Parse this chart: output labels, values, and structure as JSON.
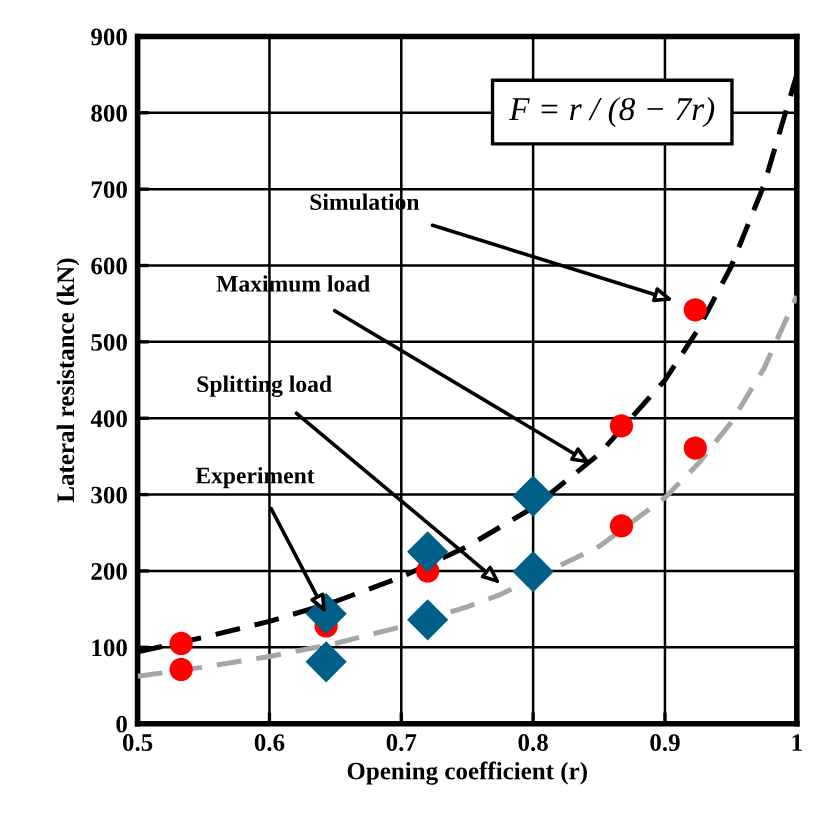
{
  "chart_data": {
    "type": "line",
    "xlabel": "Opening coefficient (r)",
    "ylabel": "Lateral resistance (kN)",
    "xlim": [
      0.5,
      1
    ],
    "ylim": [
      0,
      900
    ],
    "xticks": [
      0.5,
      0.6,
      0.7,
      0.8,
      0.9,
      {
        "value": 1,
        "label": "1"
      }
    ],
    "yticks": [
      0,
      100,
      200,
      300,
      400,
      500,
      600,
      700,
      800,
      900
    ],
    "grid": true,
    "legend": false,
    "series": [
      {
        "line_style": "dashed",
        "marker": "none",
        "color": "#000000",
        "x": [
          0.5,
          0.55,
          0.6,
          0.65,
          0.7,
          0.75,
          0.8,
          0.85,
          0.9,
          0.925,
          0.95,
          0.975,
          1.0
        ],
        "values": [
          94,
          113,
          134,
          160,
          192,
          232,
          283,
          353,
          450,
          516,
          598,
          705,
          850
        ]
      },
      {
        "line_style": "dashed",
        "marker": "none",
        "color": "#a6a6a6",
        "x": [
          0.5,
          0.55,
          0.6,
          0.65,
          0.7,
          0.75,
          0.775,
          0.85,
          0.9,
          0.925,
          0.95,
          0.975,
          1.0
        ],
        "values": [
          62,
          74,
          88,
          105,
          127,
          153,
          169,
          232,
          296,
          340,
          394,
          465,
          560
        ]
      },
      {
        "type": "scatter",
        "marker": "circle",
        "color": "#ff0000",
        "x": [
          0.533,
          0.533,
          0.643,
          0.72,
          0.867,
          0.867,
          0.923,
          0.923
        ],
        "values": [
          105,
          71,
          128,
          200,
          390,
          259,
          542,
          361
        ]
      },
      {
        "type": "scatter",
        "marker": "diamond",
        "color": "#005f87",
        "x": [
          0.643,
          0.643,
          0.72,
          0.72,
          0.8,
          0.8
        ],
        "values": [
          144,
          81,
          225,
          136,
          298,
          199
        ]
      }
    ],
    "annotations": [
      "Simulation",
      "Maximum load",
      "Splitting load",
      {
        "text": "Experiment",
        "x": 0.643,
        "y": 144
      },
      "F = r / (8 − 7r)"
    ]
  }
}
